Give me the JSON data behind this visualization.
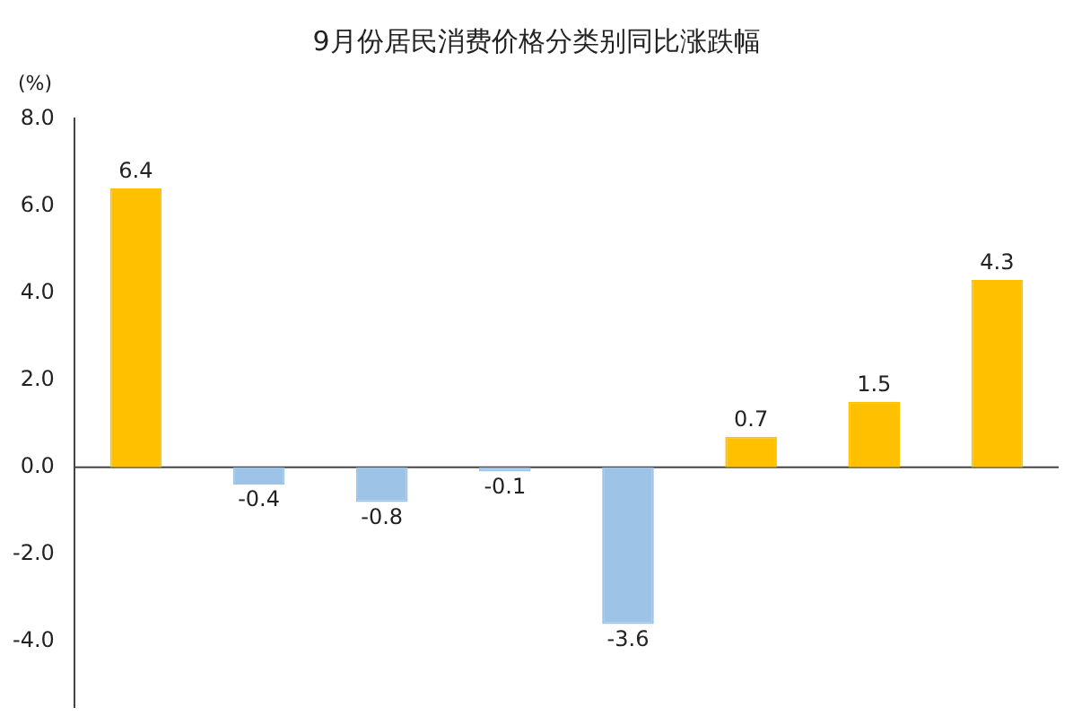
{
  "chart_data": {
    "type": "bar",
    "title": "9月份居民消费价格分类别同比涨跌幅",
    "ylabel": "(%)",
    "categories": [
      null,
      null,
      null,
      null,
      null,
      null,
      null,
      null
    ],
    "values": [
      6.4,
      -0.4,
      -0.8,
      -0.1,
      -3.6,
      0.7,
      1.5,
      4.3
    ],
    "colors": [
      "#ffc000",
      "#9dc3e6",
      "#9dc3e6",
      "#9dc3e6",
      "#9dc3e6",
      "#ffc000",
      "#ffc000",
      "#ffc000"
    ],
    "ylim": [
      -5.5,
      8
    ],
    "yticks": [
      {
        "value": -4,
        "label": "-4.0"
      },
      {
        "value": -2,
        "label": "-2.0"
      },
      {
        "value": 0,
        "label": "0.0"
      },
      {
        "value": 2,
        "label": "2.0"
      },
      {
        "value": 4,
        "label": "4.0"
      },
      {
        "value": 6,
        "label": "6.0"
      },
      {
        "value": 8,
        "label": "8.0"
      }
    ],
    "ref_lines": [
      {
        "axis": "y",
        "value": 0,
        "color": "#444444"
      }
    ],
    "grid": false,
    "legend": false,
    "data_labels": true
  }
}
